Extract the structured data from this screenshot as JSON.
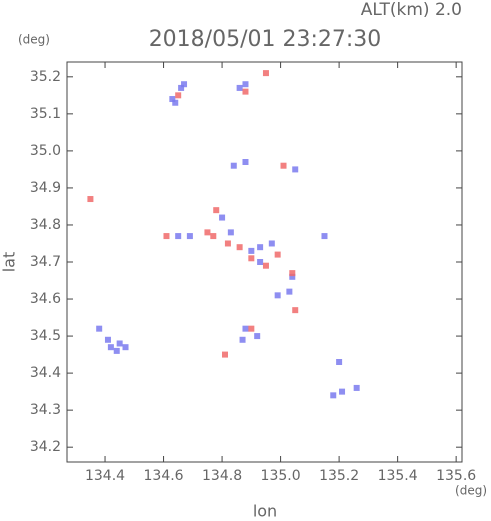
{
  "chart_data": {
    "type": "scatter",
    "title": "2018/05/01 23:27:30",
    "subtitle": "ALT(km) 2.0",
    "x_label": "lon",
    "y_label": "lat",
    "x_unit": "(deg)",
    "y_unit": "(deg)",
    "xlim": [
      134.27,
      135.62
    ],
    "ylim": [
      34.16,
      35.24
    ],
    "xticks": [
      134.4,
      134.6,
      134.8,
      {
        "value": 135,
        "label": "135.0"
      },
      135.2,
      135.4,
      135.6
    ],
    "yticks": [
      34.2,
      34.3,
      34.4,
      34.5,
      34.6,
      34.7,
      34.8,
      34.9,
      {
        "value": 35,
        "label": "35.0"
      },
      35.1,
      35.2
    ],
    "series": [
      {
        "color": "#7a7aee",
        "x": [
          134.38,
          134.42,
          134.44,
          134.45,
          134.41,
          134.47,
          134.63,
          134.64,
          134.66,
          134.67,
          134.86,
          134.88,
          134.88,
          134.84,
          135.05,
          134.99,
          135.04,
          135.03,
          134.9,
          134.93,
          134.97,
          134.93,
          134.83,
          134.8,
          134.69,
          134.65,
          134.88,
          134.92,
          134.87,
          135.15,
          135.2,
          135.21,
          135.18,
          135.26
        ],
        "y": [
          34.52,
          34.47,
          34.46,
          34.48,
          34.49,
          34.47,
          35.14,
          35.13,
          35.17,
          35.18,
          35.17,
          35.18,
          34.97,
          34.96,
          34.95,
          34.61,
          34.66,
          34.62,
          34.73,
          34.74,
          34.75,
          34.7,
          34.78,
          34.82,
          34.77,
          34.77,
          34.52,
          34.5,
          34.49,
          34.77,
          34.43,
          34.35,
          34.34,
          34.36
        ]
      },
      {
        "color": "#f06a6a",
        "x": [
          134.95,
          134.88,
          134.65,
          134.35,
          135.01,
          134.61,
          134.78,
          134.77,
          134.82,
          134.86,
          134.9,
          134.95,
          135.05,
          135.04,
          134.81,
          134.9,
          134.75,
          134.99
        ],
        "y": [
          35.21,
          35.16,
          35.15,
          34.87,
          34.96,
          34.77,
          34.84,
          34.77,
          34.75,
          34.74,
          34.71,
          34.69,
          34.57,
          34.67,
          34.45,
          34.52,
          34.78,
          34.72
        ]
      }
    ]
  }
}
